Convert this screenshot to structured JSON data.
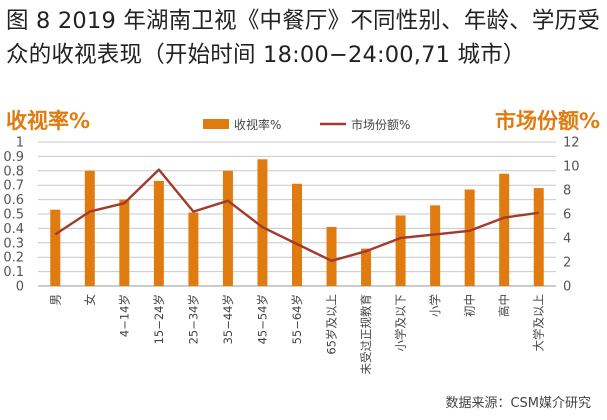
{
  "title": "图 8 2019 年湖南卫视《中餐厅》不同性别、年龄、学历受众的收视表现（开始时间 18:00−24:00,71 城市）",
  "source": "数据来源：CSM媒介研究",
  "colors": {
    "bar": "#E07B0F",
    "line": "#A33A2C",
    "axis_label": "#E07B0F"
  },
  "chart_data": {
    "type": "bar",
    "ylabel": "收视率%",
    "y2label": "市场份额%",
    "ylim": [
      0,
      1
    ],
    "y2lim": [
      0,
      12
    ],
    "yticks": [
      0,
      0.1,
      0.2,
      0.3,
      0.4,
      0.5,
      0.6,
      0.7,
      0.8,
      0.9,
      1
    ],
    "y2ticks": [
      0,
      2,
      4,
      6,
      8,
      10,
      12
    ],
    "grid": true,
    "legend": "top-center",
    "categories": [
      "男",
      "女",
      "4−14岁",
      "15−24岁",
      "25−34岁",
      "35−44岁",
      "45−54岁",
      "55−64岁",
      "65岁及以上",
      "未受过正规教育",
      "小学及以下",
      "小学",
      "初中",
      "高中",
      "大学及以上"
    ],
    "series": [
      {
        "name": "收视率%",
        "type": "bar",
        "axis": "left",
        "values": [
          0.53,
          0.8,
          0.6,
          0.73,
          0.51,
          0.8,
          0.88,
          0.71,
          0.41,
          0.26,
          0.49,
          0.56,
          0.67,
          0.78,
          0.68
        ]
      },
      {
        "name": "市场份额%",
        "type": "line",
        "axis": "right",
        "values": [
          4.3,
          6.2,
          6.9,
          9.7,
          6.2,
          7.1,
          4.9,
          3.5,
          2.1,
          2.9,
          4.0,
          4.3,
          4.6,
          5.7,
          6.1
        ]
      }
    ]
  }
}
